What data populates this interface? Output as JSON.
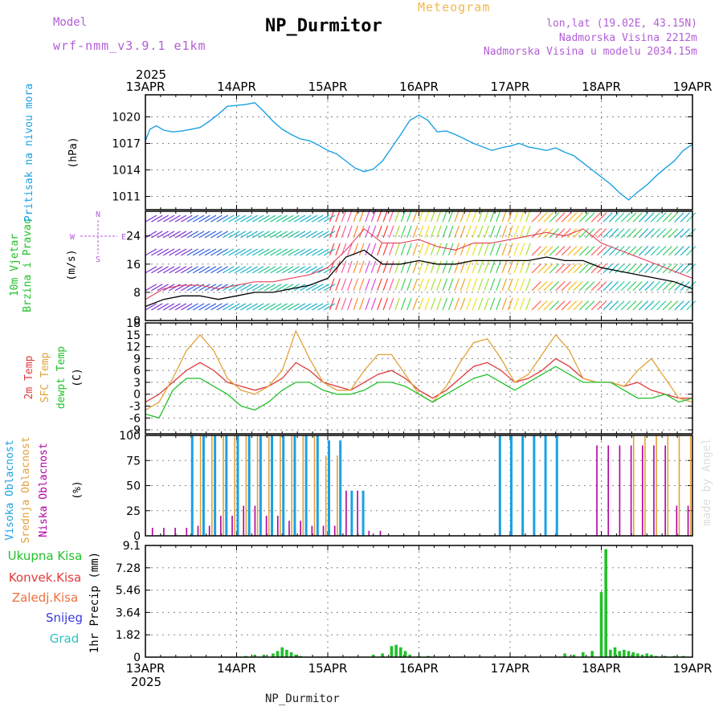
{
  "header": {
    "model_label": "Model",
    "model_name": "wrf-nmm_v3.9.1 e1km",
    "title": "NP_Durmitor",
    "subtitle": "Meteogram",
    "lonlat": "lon,lat (19.02E, 43.15N)",
    "altitude": "Nadmorska Visina 2212m",
    "model_altitude": "Nadmorska Visina u modelu 2034.15m"
  },
  "footer": {
    "station": "NP_Durmitor",
    "watermark": "made by Angel"
  },
  "time_axis": {
    "year": "2025",
    "ticks": [
      "13APR",
      "14APR",
      "15APR",
      "16APR",
      "17APR",
      "18APR",
      "19APR"
    ]
  },
  "colors": {
    "pressure": "#1ba1e2",
    "wind_speed": "#000000",
    "gust": "#e0304a",
    "temp2m": "#e03a3a",
    "sfc_temp": "#e2a23a",
    "dewpt": "#22c02a",
    "cloud_high": "#1ba1e2",
    "cloud_mid": "#e2a23a",
    "cloud_low": "#b000a0",
    "precip_total": "#22c02a",
    "precip_conv": "#e03a3a",
    "precip_snow": "#3a3ae0"
  },
  "chart_data": [
    {
      "type": "line",
      "ylabel_left": "Pritisak na nivou mora",
      "ylabel": "(hPa)",
      "ylim": [
        1009.5,
        1022.5
      ],
      "yticks": [
        "1011",
        "1014",
        "1017",
        "1020"
      ],
      "grid": true,
      "x_days": [
        0,
        0.05,
        0.12,
        0.2,
        0.3,
        0.4,
        0.5,
        0.6,
        0.7,
        0.8,
        0.9,
        1.0,
        1.1,
        1.2,
        1.3,
        1.4,
        1.5,
        1.6,
        1.7,
        1.8,
        1.9,
        2.0,
        2.1,
        2.2,
        2.3,
        2.4,
        2.5,
        2.6,
        2.7,
        2.8,
        2.9,
        3.0,
        3.1,
        3.2,
        3.3,
        3.4,
        3.5,
        3.6,
        3.7,
        3.8,
        3.9,
        4.0,
        4.1,
        4.2,
        4.3,
        4.4,
        4.5,
        4.6,
        4.7,
        4.8,
        4.9,
        5.0,
        5.1,
        5.2,
        5.3,
        5.4,
        5.5,
        5.6,
        5.7,
        5.8,
        5.9,
        6.0
      ],
      "series": [
        {
          "values": [
            1017.3,
            1018.6,
            1019.0,
            1018.5,
            1018.3,
            1018.4,
            1018.6,
            1018.8,
            1019.5,
            1020.3,
            1021.2,
            1021.3,
            1021.4,
            1021.6,
            1020.6,
            1019.5,
            1018.6,
            1018.0,
            1017.5,
            1017.3,
            1016.8,
            1016.2,
            1015.8,
            1015.0,
            1014.2,
            1013.8,
            1014.1,
            1015.0,
            1016.5,
            1018.0,
            1019.6,
            1020.2,
            1019.6,
            1018.3,
            1018.4,
            1018.0,
            1017.5,
            1017.0,
            1016.6,
            1016.2,
            1016.5,
            1016.7,
            1017.0,
            1016.6,
            1016.4,
            1016.2,
            1016.5,
            1016.0,
            1015.6,
            1014.8,
            1014.0,
            1013.2,
            1012.4,
            1011.4,
            1010.6,
            1011.5,
            1012.3,
            1013.3,
            1014.2,
            1015.0,
            1016.2,
            1016.9
          ]
        }
      ]
    },
    {
      "type": "line",
      "ylabel_left": "10m Vjetar Brzina i Pravac",
      "ylabel": "(m/s)",
      "direction_labels": [
        "N",
        "E",
        "S",
        "W"
      ],
      "ylim": [
        0,
        31
      ],
      "yticks": [
        "0",
        "8",
        "16",
        "24"
      ],
      "grid": true,
      "x_days": [
        0,
        0.2,
        0.4,
        0.6,
        0.8,
        1.0,
        1.2,
        1.4,
        1.6,
        1.8,
        2.0,
        2.2,
        2.4,
        2.6,
        2.8,
        3.0,
        3.2,
        3.4,
        3.6,
        3.8,
        4.0,
        4.2,
        4.4,
        4.6,
        4.8,
        5.0,
        5.2,
        5.4,
        5.6,
        5.8,
        6.0
      ],
      "series": [
        {
          "name": "speed",
          "values": [
            4,
            6,
            7,
            7,
            6,
            7,
            8,
            8,
            9,
            10,
            12,
            18,
            20,
            16,
            16,
            17,
            16,
            16,
            17,
            17,
            17,
            17,
            18,
            17,
            17,
            15,
            14,
            13,
            12,
            11,
            9
          ]
        },
        {
          "name": "gust",
          "values": [
            6,
            9,
            10,
            10,
            9,
            10,
            11,
            11,
            12,
            13,
            15,
            20,
            26,
            22,
            22,
            23,
            21,
            20,
            22,
            22,
            23,
            24,
            25,
            24,
            26,
            22,
            20,
            18,
            16,
            14,
            12
          ]
        }
      ]
    },
    {
      "type": "line",
      "ylabel_left": [
        "2m Temp",
        "SFC Temp",
        "dewpt Temp"
      ],
      "ylabel": "(C)",
      "ylim": [
        -10,
        18
      ],
      "yticks": [
        "-9",
        "-6",
        "-3",
        "0",
        "3",
        "6",
        "9",
        "12",
        "15",
        "18"
      ],
      "grid": true,
      "x_days": [
        0,
        0.15,
        0.3,
        0.45,
        0.6,
        0.75,
        0.9,
        1.05,
        1.2,
        1.35,
        1.5,
        1.65,
        1.8,
        1.95,
        2.1,
        2.25,
        2.4,
        2.55,
        2.7,
        2.85,
        3.0,
        3.15,
        3.3,
        3.45,
        3.6,
        3.75,
        3.9,
        4.05,
        4.2,
        4.35,
        4.5,
        4.65,
        4.8,
        4.95,
        5.1,
        5.25,
        5.4,
        5.55,
        5.7,
        5.85,
        6.0
      ],
      "series": [
        {
          "name": "2m Temp",
          "values": [
            -2,
            0,
            3,
            6,
            8,
            6,
            3,
            2,
            1,
            2,
            4,
            8,
            6,
            3,
            2,
            1,
            3,
            5,
            6,
            4,
            1,
            -1,
            1,
            4,
            7,
            8,
            6,
            3,
            4,
            6,
            9,
            7,
            4,
            3,
            3,
            2,
            3,
            1,
            0,
            -1,
            -1
          ]
        },
        {
          "name": "SFC Temp",
          "values": [
            -4,
            -2,
            4,
            11,
            15,
            11,
            4,
            1,
            0,
            2,
            6,
            16,
            9,
            3,
            1,
            1,
            6,
            10,
            10,
            5,
            0,
            -2,
            2,
            8,
            13,
            14,
            9,
            3,
            5,
            10,
            15,
            11,
            4,
            3,
            3,
            2,
            6,
            9,
            4,
            -1,
            -2
          ]
        },
        {
          "name": "dewpt Temp",
          "values": [
            -5,
            -6,
            1,
            4,
            4,
            2,
            0,
            -3,
            -4,
            -2,
            1,
            3,
            3,
            1,
            0,
            0,
            1,
            3,
            3,
            2,
            0,
            -2,
            0,
            2,
            4,
            5,
            3,
            1,
            3,
            5,
            7,
            5,
            3,
            3,
            3,
            1,
            -1,
            -1,
            0,
            -2,
            -1
          ]
        }
      ]
    },
    {
      "type": "bar",
      "ylabel_left": [
        "Visoka Oblacnost",
        "Srednja Oblacnost",
        "Niska Oblacnost"
      ],
      "ylabel": "(%)",
      "ylim": [
        0,
        100
      ],
      "yticks": [
        "0",
        "25",
        "50",
        "75",
        "100"
      ],
      "grid": true,
      "series": [
        {
          "name": "Visoka Oblacnost",
          "values": [
            0,
            0,
            100,
            100,
            100,
            100,
            100,
            100,
            95,
            45,
            0,
            0,
            0,
            0,
            0,
            0,
            100,
            100,
            100,
            0,
            0,
            0,
            0,
            0,
            0
          ]
        },
        {
          "name": "Srednja Oblacnost",
          "values": [
            0,
            0,
            100,
            100,
            100,
            100,
            100,
            100,
            80,
            0,
            0,
            0,
            0,
            0,
            0,
            0,
            0,
            0,
            0,
            0,
            0,
            0,
            100,
            100,
            100
          ]
        },
        {
          "name": "Niska Oblacnost",
          "values": [
            8,
            8,
            10,
            20,
            30,
            20,
            15,
            10,
            10,
            45,
            5,
            0,
            0,
            0,
            0,
            0,
            0,
            0,
            0,
            0,
            90,
            90,
            90,
            90,
            30
          ]
        }
      ]
    },
    {
      "type": "bar",
      "ylabel_left": [
        "Ukupna Kisa",
        "Konvek.Kisa",
        "Zaledj.Kisa",
        "Snijeg",
        "Grad"
      ],
      "ylabel": "1hr Precip (mm)",
      "ylim": [
        0,
        9.1
      ],
      "yticks": [
        "0",
        "1.82",
        "3.64",
        "5.46",
        "7.28",
        "9.1"
      ],
      "grid": true,
      "x_days": [
        1.1,
        1.2,
        1.3,
        1.4,
        1.45,
        1.5,
        1.55,
        1.6,
        1.65,
        1.7,
        2.5,
        2.6,
        2.7,
        2.75,
        2.8,
        2.85,
        2.9,
        3.0,
        3.1,
        4.6,
        4.7,
        4.8,
        4.9,
        5.0,
        5.05,
        5.1,
        5.15,
        5.2,
        5.25,
        5.3,
        5.35,
        5.4,
        5.45,
        5.5,
        5.55,
        5.6,
        5.7,
        5.8,
        5.9
      ],
      "series": [
        {
          "name": "Ukupna Kisa",
          "values": [
            0.1,
            0.2,
            0.2,
            0.3,
            0.5,
            0.8,
            0.6,
            0.4,
            0.2,
            0.1,
            0.2,
            0.3,
            0.9,
            1.0,
            0.8,
            0.5,
            0.2,
            0.1,
            0.1,
            0.3,
            0.2,
            0.4,
            0.5,
            5.3,
            8.8,
            0.6,
            0.8,
            0.5,
            0.6,
            0.5,
            0.4,
            0.3,
            0.2,
            0.3,
            0.2,
            0.1,
            0.1,
            0.1,
            0.1
          ]
        }
      ]
    }
  ]
}
